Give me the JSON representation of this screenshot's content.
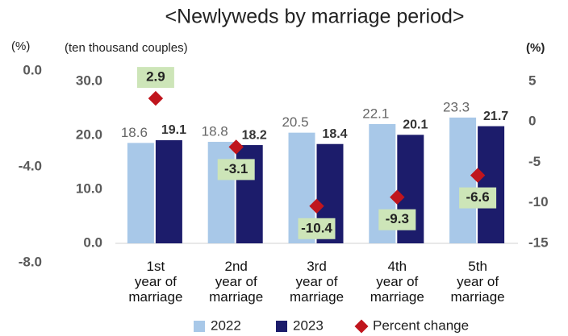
{
  "chart_data": {
    "type": "bar",
    "title": "<Newlyweds by marriage period>",
    "y3label": "(%)",
    "ylabel": "(ten thousand couples)",
    "y2label": "(%)",
    "categories": [
      "1st year of marriage",
      "2nd year of marriage",
      "3rd year of marriage",
      "4th year of marriage",
      "5th year of marriage"
    ],
    "series": [
      {
        "name": "2022",
        "color": "#a8c8e8",
        "values": [
          18.6,
          18.8,
          20.5,
          22.1,
          23.3
        ]
      },
      {
        "name": "2023",
        "color": "#1c1c6b",
        "values": [
          19.1,
          18.2,
          18.4,
          20.1,
          21.7
        ]
      },
      {
        "name": "Percent change",
        "color": "#c0151d",
        "axis": "y2",
        "values": [
          2.9,
          -3.1,
          -10.4,
          -9.3,
          -6.6
        ]
      }
    ],
    "ylim": [
      0,
      30
    ],
    "yticks": [
      {
        "value": 0,
        "label": "0.0"
      },
      {
        "value": 10,
        "label": "10.0"
      },
      {
        "value": 20,
        "label": "20.0"
      },
      {
        "value": 30,
        "label": "30.0"
      }
    ],
    "y2lim": [
      -15,
      5
    ],
    "y2ticks": [
      5,
      0,
      -5,
      -10,
      -15
    ],
    "y3lim": [
      -8,
      0
    ],
    "y3ticks": [
      {
        "value": 0,
        "label": "0.0"
      },
      {
        "value": -4,
        "label": "-4.0"
      },
      {
        "value": -8,
        "label": "-8.0"
      }
    ],
    "grid": false,
    "legend": "bottom"
  }
}
